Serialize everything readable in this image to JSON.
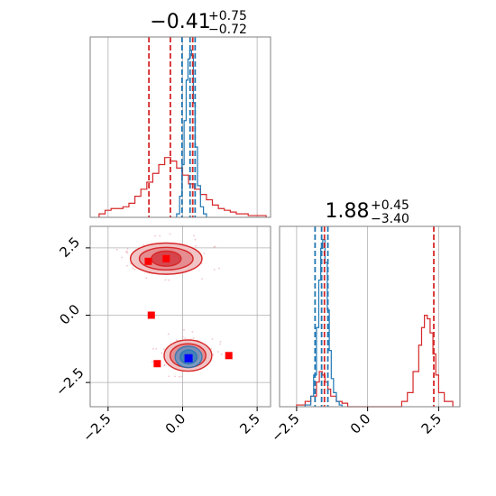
{
  "chart_data": {
    "type": "corner",
    "colors": {
      "red": "#d62728",
      "blue": "#1f77b4",
      "grid": "#b0b0b0",
      "axis": "#808080"
    },
    "panels": {
      "hist_x": {
        "title": {
          "main": "−0.41",
          "sup": "+0.75",
          "sub": "−0.72"
        },
        "xlim": [
          -3.1,
          2.95
        ],
        "red_quantiles": [
          -1.13,
          -0.41,
          0.34
        ],
        "blue_quantiles": [
          -0.02,
          0.25,
          0.42
        ],
        "red_hist": [
          [
            -2.8,
            0.02
          ],
          [
            -2.6,
            0.04
          ],
          [
            -2.4,
            0.05
          ],
          [
            -2.2,
            0.05
          ],
          [
            -2.0,
            0.06
          ],
          [
            -1.8,
            0.08
          ],
          [
            -1.6,
            0.12
          ],
          [
            -1.4,
            0.16
          ],
          [
            -1.2,
            0.2
          ],
          [
            -1.0,
            0.25
          ],
          [
            -0.8,
            0.3
          ],
          [
            -0.6,
            0.34
          ],
          [
            -0.4,
            0.32
          ],
          [
            -0.2,
            0.28
          ],
          [
            0.0,
            0.24
          ],
          [
            0.2,
            0.19
          ],
          [
            0.4,
            0.16
          ],
          [
            0.6,
            0.13
          ],
          [
            0.8,
            0.1
          ],
          [
            1.0,
            0.07
          ],
          [
            1.2,
            0.05
          ],
          [
            1.4,
            0.04
          ],
          [
            1.6,
            0.03
          ],
          [
            1.8,
            0.02
          ],
          [
            2.0,
            0.02
          ],
          [
            2.2,
            0.01
          ],
          [
            2.4,
            0.01
          ],
          [
            2.8,
            0.0
          ]
        ],
        "blue_hist": [
          [
            -0.2,
            0.02
          ],
          [
            -0.1,
            0.12
          ],
          [
            -0.02,
            0.3
          ],
          [
            0.05,
            0.55
          ],
          [
            0.12,
            0.78
          ],
          [
            0.18,
            0.9
          ],
          [
            0.24,
            0.95
          ],
          [
            0.3,
            0.92
          ],
          [
            0.36,
            0.65
          ],
          [
            0.42,
            0.4
          ],
          [
            0.5,
            0.18
          ],
          [
            0.6,
            0.06
          ],
          [
            0.7,
            0.02
          ],
          [
            0.8,
            0.0
          ]
        ]
      },
      "hist_y": {
        "title": {
          "main": "1.88",
          "sup": "+0.45",
          "sub": "−3.40"
        },
        "xlim": [
          -3.1,
          3.25
        ],
        "xticks": [
          -2.5,
          0.0,
          2.5
        ],
        "xtick_labels": [
          "−2.5",
          "0.0",
          "2.5"
        ],
        "red_quantiles": [
          -1.52,
          2.33
        ],
        "blue_quantiles": [
          -1.85,
          -1.62,
          -1.4
        ],
        "red_hist": [
          [
            -2.5,
            0.01
          ],
          [
            -2.2,
            0.03
          ],
          [
            -2.0,
            0.06
          ],
          [
            -1.8,
            0.14
          ],
          [
            -1.7,
            0.2
          ],
          [
            -1.6,
            0.18
          ],
          [
            -1.5,
            0.14
          ],
          [
            -1.4,
            0.1
          ],
          [
            -1.3,
            0.06
          ],
          [
            -1.1,
            0.03
          ],
          [
            -0.9,
            0.02
          ],
          [
            -0.7,
            0.0
          ],
          [
            1.0,
            0.0
          ],
          [
            1.2,
            0.03
          ],
          [
            1.4,
            0.08
          ],
          [
            1.6,
            0.2
          ],
          [
            1.8,
            0.35
          ],
          [
            1.9,
            0.45
          ],
          [
            2.0,
            0.52
          ],
          [
            2.1,
            0.5
          ],
          [
            2.2,
            0.42
          ],
          [
            2.3,
            0.3
          ],
          [
            2.4,
            0.18
          ],
          [
            2.5,
            0.08
          ],
          [
            2.7,
            0.03
          ],
          [
            3.0,
            0.01
          ]
        ],
        "blue_hist": [
          [
            -2.2,
            0.01
          ],
          [
            -2.0,
            0.06
          ],
          [
            -1.9,
            0.18
          ],
          [
            -1.8,
            0.45
          ],
          [
            -1.72,
            0.72
          ],
          [
            -1.65,
            0.9
          ],
          [
            -1.58,
            0.95
          ],
          [
            -1.5,
            0.82
          ],
          [
            -1.42,
            0.55
          ],
          [
            -1.35,
            0.32
          ],
          [
            -1.28,
            0.16
          ],
          [
            -1.2,
            0.08
          ],
          [
            -1.1,
            0.03
          ],
          [
            -1.0,
            0.01
          ],
          [
            -0.9,
            0.0
          ]
        ]
      },
      "joint": {
        "xlim": [
          -3.1,
          2.95
        ],
        "ylim": [
          -3.4,
          3.3
        ],
        "xticks": [
          -2.5,
          0.0,
          2.5
        ],
        "xtick_labels": [
          "−2.5",
          "0.0",
          "2.5"
        ],
        "yticks": [
          -2.5,
          0.0,
          2.5
        ],
        "ytick_labels": [
          "−2.5",
          "0.0",
          "2.5"
        ],
        "red_modes": [
          {
            "cx": -0.55,
            "cy": 2.1,
            "rx": [
              1.2,
              0.9,
              0.5
            ],
            "ry": [
              0.58,
              0.42,
              0.28
            ]
          },
          {
            "cx": 0.18,
            "cy": -1.5,
            "rx": [
              0.8,
              0.6,
              0.38
            ],
            "ry": [
              0.58,
              0.44,
              0.3
            ]
          }
        ],
        "blue_mode": {
          "cx": 0.2,
          "cy": -1.55,
          "rx": [
            0.45,
            0.28
          ],
          "ry": [
            0.4,
            0.26
          ]
        },
        "red_squares": [
          [
            -1.15,
            2.0
          ],
          [
            -0.55,
            2.1
          ],
          [
            -1.05,
            0.0
          ],
          [
            -0.85,
            -1.8
          ],
          [
            0.2,
            -1.6
          ],
          [
            1.55,
            -1.5
          ]
        ],
        "blue_square": [
          0.2,
          -1.6
        ]
      }
    }
  }
}
